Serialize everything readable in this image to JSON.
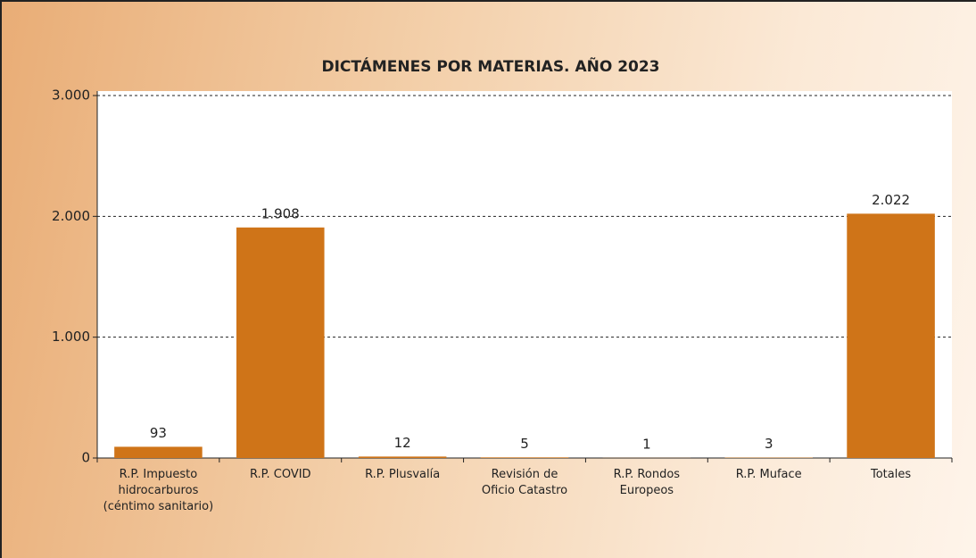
{
  "chart_data": {
    "type": "bar",
    "title": "DICTÁMENES POR MATERIAS. AÑO 2023",
    "categories": [
      "R.P. Impuesto\nhidrocarburos\n(céntimo sanitario)",
      "R.P. COVID",
      "R.P. Plusvalía",
      "Revisión de\nOficio Catastro",
      "R.P. Rondos\nEuropeos",
      "R.P. Muface",
      "Totales"
    ],
    "values": [
      93,
      1908,
      12,
      5,
      1,
      3,
      2022
    ],
    "value_labels": [
      "93",
      "1.908",
      "12",
      "5",
      "1",
      "3",
      "2.022"
    ],
    "color": "#cf7418",
    "ylim": [
      0,
      3000
    ],
    "yticks": [
      0,
      {
        "value": 1000,
        "label": "1.000"
      },
      {
        "value": 2000,
        "label": "2.000"
      },
      {
        "value": 3000,
        "label": "3.000"
      }
    ],
    "grid": true
  }
}
